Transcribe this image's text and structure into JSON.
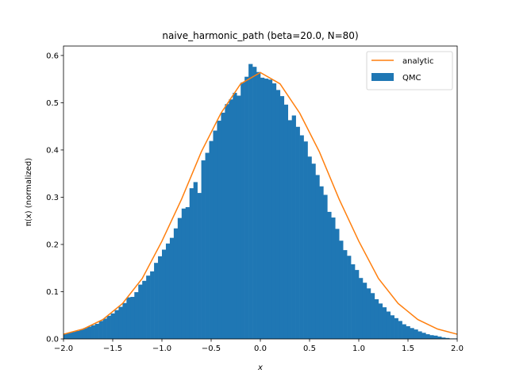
{
  "chart_data": {
    "type": "bar",
    "title": "naive_harmonic_path (beta=20.0, N=80)",
    "xlabel": "x",
    "ylabel": "π(x) (normalized)",
    "xlim": [
      -2.0,
      2.0
    ],
    "ylim": [
      0.0,
      0.62
    ],
    "xticks": [
      -2.0,
      -1.5,
      -1.0,
      -0.5,
      0.0,
      0.5,
      1.0,
      1.5,
      2.0
    ],
    "xtick_labels": [
      "−2.0",
      "−1.5",
      "−1.0",
      "−0.5",
      "0.0",
      "0.5",
      "1.0",
      "1.5",
      "2.0"
    ],
    "yticks": [
      0.0,
      0.1,
      0.2,
      0.3,
      0.4,
      0.5,
      0.6
    ],
    "ytick_labels": [
      "0.0",
      "0.1",
      "0.2",
      "0.3",
      "0.4",
      "0.5",
      "0.6"
    ],
    "grid": false,
    "legend_position": "top-right",
    "series": [
      {
        "name": "QMC",
        "kind": "histogram",
        "color": "#1f77b4",
        "bin_start": -2.0,
        "bin_width": 0.04,
        "values": [
          0.011,
          0.013,
          0.015,
          0.017,
          0.02,
          0.023,
          0.026,
          0.029,
          0.032,
          0.038,
          0.043,
          0.049,
          0.054,
          0.061,
          0.068,
          0.076,
          0.088,
          0.089,
          0.099,
          0.115,
          0.123,
          0.134,
          0.143,
          0.161,
          0.175,
          0.189,
          0.202,
          0.214,
          0.234,
          0.256,
          0.276,
          0.279,
          0.319,
          0.332,
          0.309,
          0.378,
          0.394,
          0.419,
          0.441,
          0.462,
          0.479,
          0.497,
          0.507,
          0.521,
          0.515,
          0.543,
          0.555,
          0.582,
          0.576,
          0.565,
          0.553,
          0.551,
          0.549,
          0.541,
          0.527,
          0.514,
          0.496,
          0.463,
          0.473,
          0.449,
          0.431,
          0.418,
          0.386,
          0.371,
          0.347,
          0.323,
          0.305,
          0.269,
          0.257,
          0.233,
          0.208,
          0.188,
          0.176,
          0.158,
          0.146,
          0.129,
          0.119,
          0.107,
          0.097,
          0.084,
          0.075,
          0.067,
          0.058,
          0.05,
          0.044,
          0.038,
          0.031,
          0.027,
          0.023,
          0.02,
          0.016,
          0.013,
          0.01,
          0.008,
          0.007,
          0.005,
          0.003,
          0.002,
          0.001,
          0.001
        ]
      },
      {
        "name": "analytic",
        "kind": "line",
        "color": "#ff7f0e",
        "x": [
          -2.0,
          -1.8,
          -1.6,
          -1.4,
          -1.2,
          -1.0,
          -0.8,
          -0.6,
          -0.4,
          -0.2,
          0.0,
          0.2,
          0.4,
          0.6,
          0.8,
          1.0,
          1.2,
          1.4,
          1.6,
          1.8,
          2.0
        ],
        "values": [
          0.01,
          0.021,
          0.041,
          0.075,
          0.128,
          0.207,
          0.296,
          0.396,
          0.478,
          0.54,
          0.564,
          0.54,
          0.478,
          0.396,
          0.296,
          0.207,
          0.128,
          0.075,
          0.041,
          0.021,
          0.01
        ]
      }
    ]
  }
}
